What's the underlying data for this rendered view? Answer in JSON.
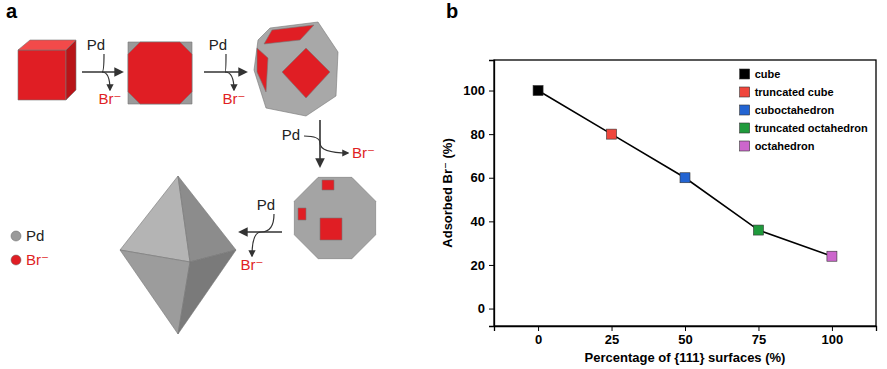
{
  "diagram": {
    "label": "a",
    "steps": [
      {
        "reactant": "Pd",
        "product": "Br⁻"
      },
      {
        "reactant": "Pd",
        "product": "Br⁻"
      },
      {
        "reactant": "Pd",
        "product": "Br⁻"
      },
      {
        "reactant": "Pd",
        "product": "Br⁻"
      }
    ],
    "legend": [
      "Pd",
      "Br⁻"
    ]
  },
  "chart_data": {
    "label": "b",
    "type": "line",
    "x_label": "Percentage of {111} surfaces (%)",
    "y_label": "Adsorbed Br⁻ (%)",
    "x": [
      0,
      25,
      50,
      75,
      100
    ],
    "xlim": [
      -15,
      115
    ],
    "xticks": [
      0,
      25,
      50,
      75,
      100
    ],
    "ylim": [
      -8,
      114
    ],
    "yticks": [
      0,
      20,
      40,
      60,
      80,
      100
    ],
    "legend": "upper right",
    "series": [
      {
        "type": "line",
        "color": "#000000",
        "values": [
          100,
          80,
          60,
          36,
          24
        ]
      },
      {
        "name": "cube",
        "type": "scatter",
        "marker": "square",
        "color": "#000000",
        "values": [
          100,
          null,
          null,
          null,
          null
        ]
      },
      {
        "name": "truncated cube",
        "type": "scatter",
        "marker": "square",
        "color": "#f0463c",
        "values": [
          null,
          80,
          null,
          null,
          null
        ]
      },
      {
        "name": "cuboctahedron",
        "type": "scatter",
        "marker": "square",
        "color": "#2364d2",
        "values": [
          null,
          null,
          60,
          null,
          null
        ]
      },
      {
        "name": "truncated octahedron",
        "type": "scatter",
        "marker": "square",
        "color": "#1f9a3c",
        "values": [
          null,
          null,
          null,
          36,
          null
        ]
      },
      {
        "name": "octahedron",
        "type": "scatter",
        "marker": "square",
        "color": "#cc66cc",
        "values": [
          null,
          null,
          null,
          null,
          24
        ]
      }
    ]
  }
}
